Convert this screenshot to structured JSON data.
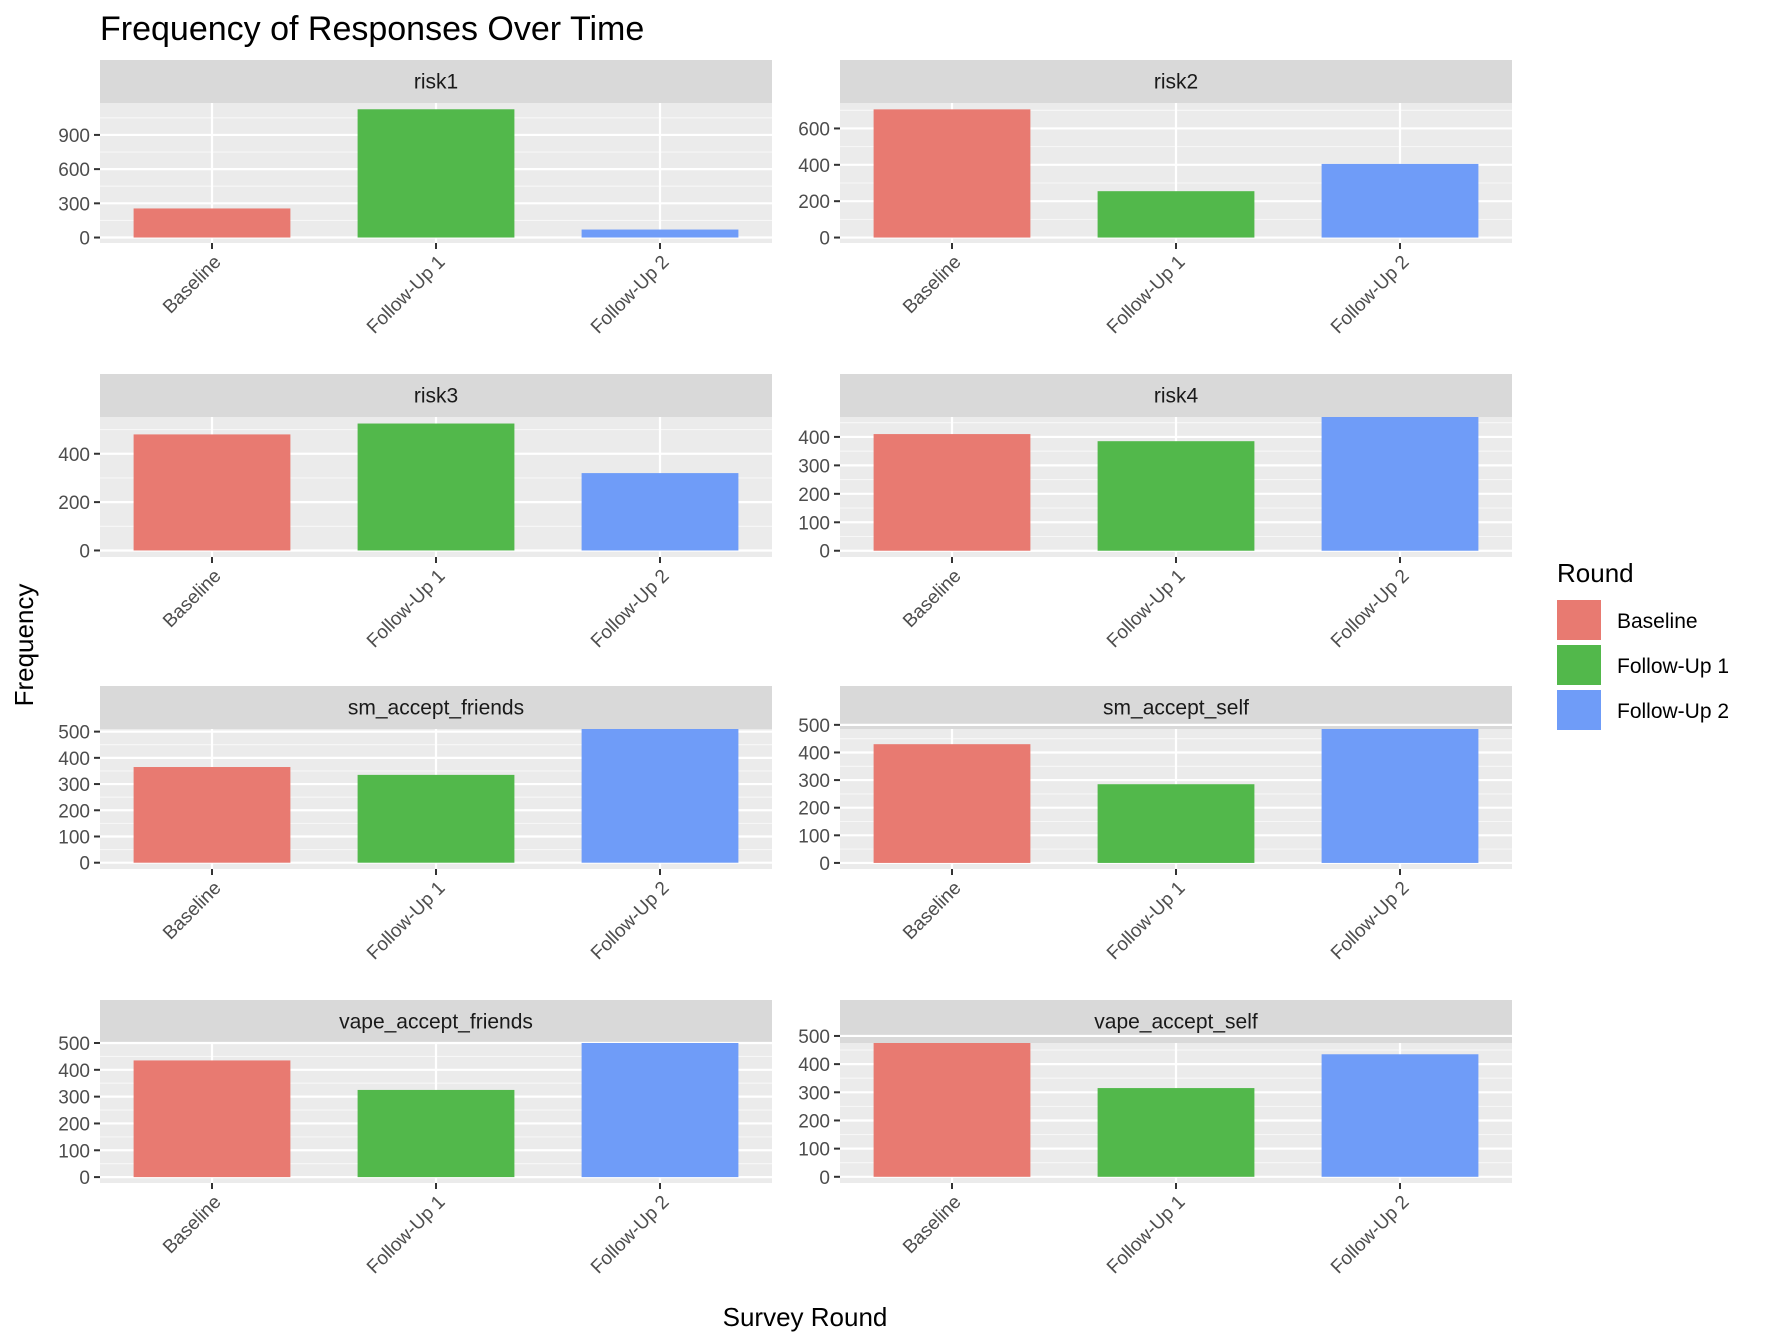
{
  "chart_data": {
    "type": "bar",
    "title": "Frequency of Responses Over Time",
    "xlabel": "Survey Round",
    "ylabel": "Frequency",
    "categories": [
      "Baseline",
      "Follow-Up 1",
      "Follow-Up 2"
    ],
    "colors": [
      "#e87a71",
      "#52b84b",
      "#6f9cf8"
    ],
    "grid": true,
    "legend": {
      "title": "Round",
      "position": "right",
      "entries": [
        "Baseline",
        "Follow-Up 1",
        "Follow-Up 2"
      ]
    },
    "facets": [
      {
        "name": "risk1",
        "values": [
          255,
          1125,
          70
        ],
        "ylim": [
          -48,
          1180
        ],
        "ticks": [
          0,
          300,
          600,
          900
        ],
        "tick_labels": [
          "0",
          "300",
          "600",
          "900"
        ]
      },
      {
        "name": "risk2",
        "values": [
          705,
          255,
          405
        ],
        "ylim": [
          -30,
          740
        ],
        "ticks": [
          0,
          200,
          400,
          600
        ],
        "tick_labels": [
          "0",
          "200",
          "400",
          "600"
        ]
      },
      {
        "name": "risk3",
        "values": [
          480,
          525,
          320
        ],
        "ylim": [
          -27,
          552
        ],
        "ticks": [
          0,
          200,
          400
        ],
        "tick_labels": [
          "0",
          "200",
          "400"
        ]
      },
      {
        "name": "risk4",
        "values": [
          410,
          385,
          470
        ],
        "ylim": [
          -22,
          470
        ],
        "ticks": [
          0,
          100,
          200,
          300,
          400
        ],
        "tick_labels": [
          "0",
          "100",
          "200",
          "300",
          "400"
        ]
      },
      {
        "name": "sm_accept_friends",
        "values": [
          365,
          335,
          510
        ],
        "ylim": [
          -24,
          510
        ],
        "ticks": [
          0,
          100,
          200,
          300,
          400,
          500
        ],
        "tick_labels": [
          "0",
          "100",
          "200",
          "300",
          "400",
          "500"
        ]
      },
      {
        "name": "sm_accept_self",
        "values": [
          430,
          285,
          485
        ],
        "ylim": [
          -22,
          485
        ],
        "ticks": [
          0,
          100,
          200,
          300,
          400,
          500
        ],
        "tick_labels": [
          "0",
          "100",
          "200",
          "300",
          "400",
          "500"
        ]
      },
      {
        "name": "vape_accept_friends",
        "values": [
          435,
          325,
          500
        ],
        "ylim": [
          -22,
          500
        ],
        "ticks": [
          0,
          100,
          200,
          300,
          400,
          500
        ],
        "tick_labels": [
          "0",
          "100",
          "200",
          "300",
          "400",
          "500"
        ]
      },
      {
        "name": "vape_accept_self",
        "values": [
          475,
          315,
          435
        ],
        "ylim": [
          -22,
          475
        ],
        "ticks": [
          0,
          100,
          200,
          300,
          400,
          500
        ],
        "tick_labels": [
          "0",
          "100",
          "200",
          "300",
          "400",
          "500"
        ]
      }
    ]
  }
}
